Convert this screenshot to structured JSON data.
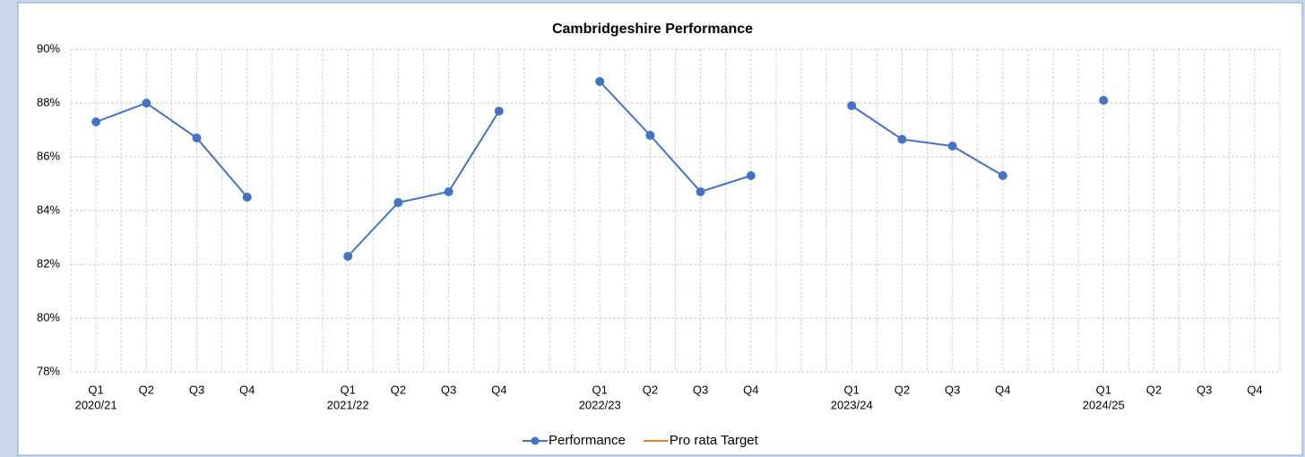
{
  "chart_data": {
    "type": "line",
    "title": "Cambridgeshire Performance",
    "categories": [
      "Q1",
      "Q2",
      "Q3",
      "Q4",
      null,
      "Q1",
      "Q2",
      "Q3",
      "Q4",
      null,
      "Q1",
      "Q2",
      "Q3",
      "Q4",
      null,
      "Q1",
      "Q2",
      "Q3",
      "Q4",
      null,
      "Q1",
      "Q2",
      "Q3",
      "Q4"
    ],
    "category_groups": [
      "2020/21",
      null,
      null,
      null,
      null,
      "2021/22",
      null,
      null,
      null,
      null,
      "2022/23",
      null,
      null,
      null,
      null,
      "2023/24",
      null,
      null,
      null,
      null,
      "2024/25",
      null,
      null,
      null
    ],
    "series": [
      {
        "name": "Performance",
        "color": "#4472c4",
        "values": [
          87.3,
          88.0,
          86.7,
          84.5,
          null,
          82.3,
          84.3,
          84.7,
          87.7,
          null,
          88.8,
          86.8,
          84.7,
          85.3,
          null,
          87.9,
          86.65,
          86.4,
          85.3,
          null,
          88.1,
          null,
          null,
          null
        ]
      },
      {
        "name": "Pro rata Target",
        "color": "#ed7d31",
        "values": [
          null,
          null,
          null,
          null,
          null,
          null,
          null,
          null,
          null,
          null,
          null,
          null,
          null,
          null,
          null,
          null,
          null,
          null,
          null,
          null,
          null,
          null,
          null,
          null
        ]
      }
    ],
    "ylim": [
      78,
      90
    ],
    "yticks": [
      {
        "value": 78,
        "label": "78%"
      },
      {
        "value": 80,
        "label": "80%"
      },
      {
        "value": 82,
        "label": "82%"
      },
      {
        "value": 84,
        "label": "84%"
      },
      {
        "value": 86,
        "label": "86%"
      },
      {
        "value": 88,
        "label": "88%"
      },
      {
        "value": 90,
        "label": "90%"
      }
    ],
    "grid": true,
    "legend": "bottom"
  }
}
